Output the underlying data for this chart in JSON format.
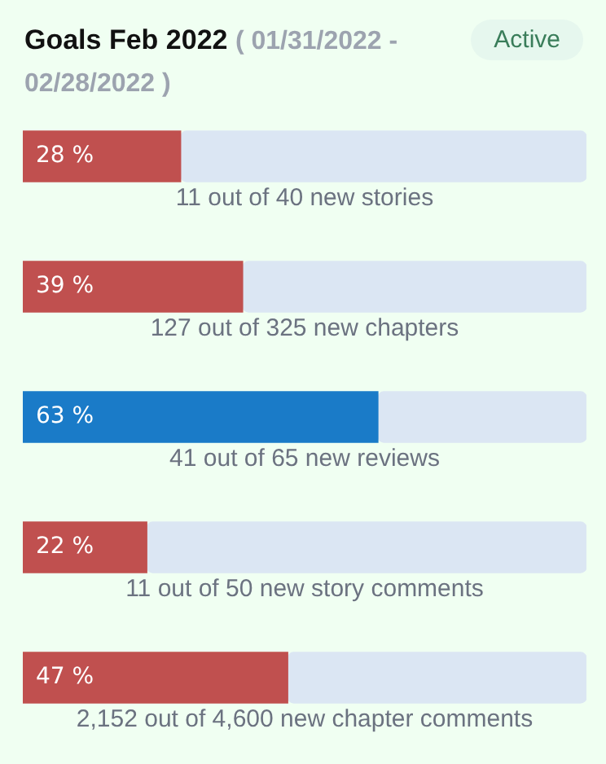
{
  "chart_data": {
    "type": "bar",
    "title": "Goals Feb 2022",
    "subtitle": "( 01/31/2022 - 02/28/2022 )",
    "annotations": [
      "Active"
    ],
    "orientation": "horizontal",
    "stacked": true,
    "xlim": [
      0,
      100
    ],
    "tick_labels": false,
    "categories": [
      "11 out of 40 new stories",
      "127 out of 325 new chapters",
      "41 out of 65 new reviews",
      "11 out of 50 new story comments",
      "2,152 out of 4,600 new chapter comments"
    ],
    "series": [
      {
        "colors": [
          "#c0504f",
          "#c0504f",
          "#1a7bc8",
          "#c0504f",
          "#c0504f"
        ],
        "values": [
          28,
          39,
          63,
          22,
          47
        ],
        "value_labels": [
          "28 %",
          "39 %",
          "63 %",
          "22 %",
          "47 %"
        ]
      },
      {
        "color": "#dbe6f3",
        "values": [
          72,
          61,
          37,
          78,
          53
        ]
      }
    ]
  }
}
